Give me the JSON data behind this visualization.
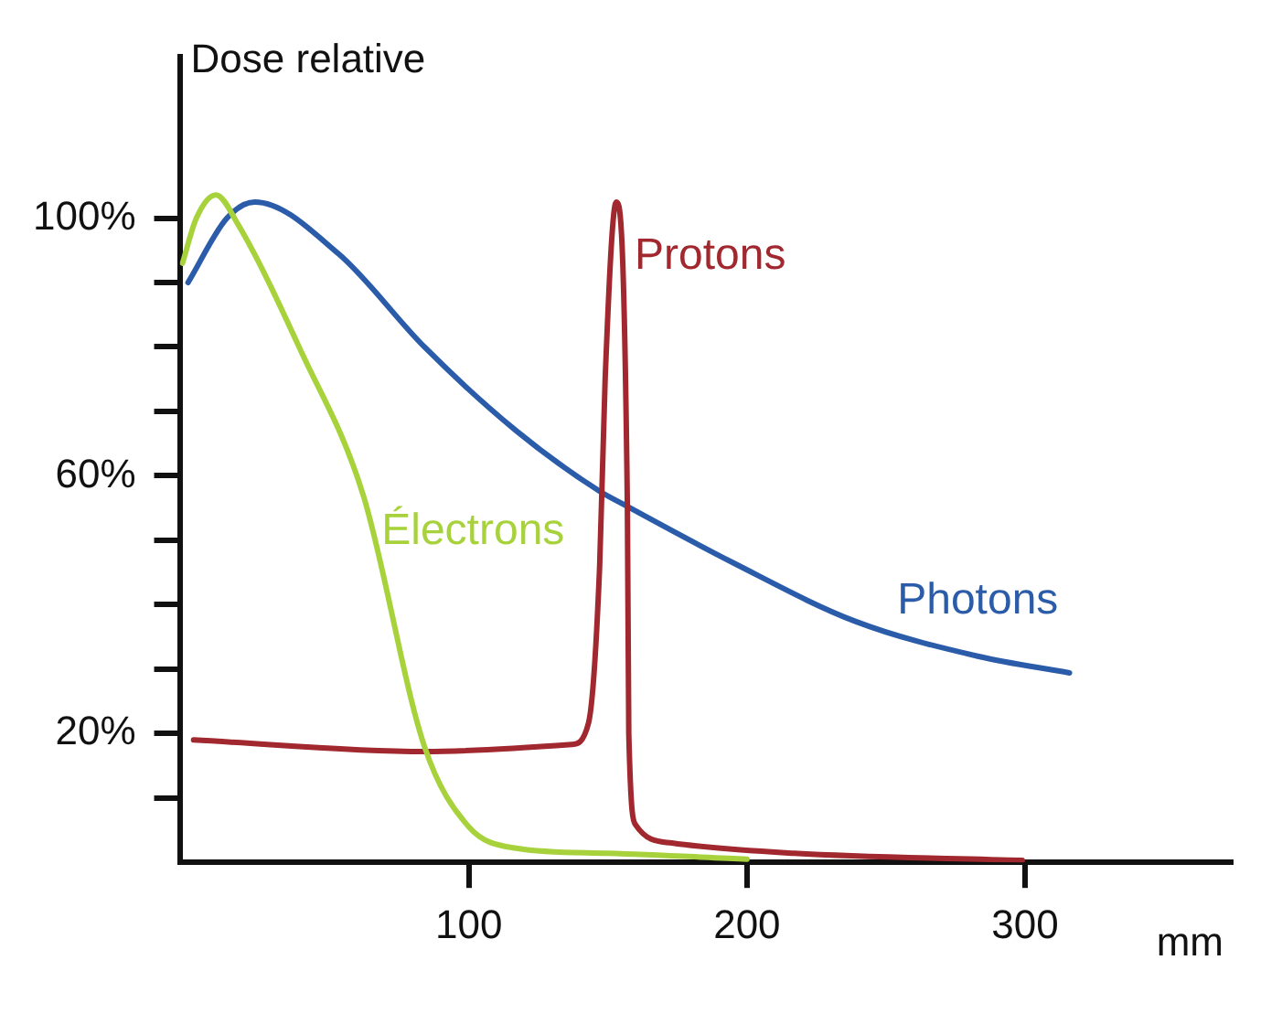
{
  "chart_data": {
    "type": "line",
    "xlabel": "mm",
    "ylabel": "Dose relative",
    "xlim": [
      -4,
      374
    ],
    "ylim": [
      0,
      125
    ],
    "xticks": [
      100,
      200,
      300
    ],
    "yticks": [
      {
        "value": 10,
        "label": null
      },
      {
        "value": 20,
        "label": "20%"
      },
      {
        "value": 30,
        "label": null
      },
      {
        "value": 40,
        "label": null
      },
      {
        "value": 50,
        "label": null
      },
      {
        "value": 60,
        "label": "60%"
      },
      {
        "value": 70,
        "label": null
      },
      {
        "value": 80,
        "label": null
      },
      {
        "value": 90,
        "label": null
      },
      {
        "value": 100,
        "label": "100%"
      }
    ],
    "grid": false,
    "legend": false,
    "marker": "none",
    "line_style": "solid",
    "series": [
      {
        "name": "Électrons",
        "color": "#a8d23c",
        "x": [
          -3,
          2,
          9,
          17,
          40,
          62,
          84,
          100,
          117,
          150,
          200
        ],
        "values": [
          93,
          100,
          103.6,
          99,
          79,
          57,
          18,
          5.5,
          2.2,
          1.4,
          0.5
        ]
      },
      {
        "name": "Protons",
        "color": "#a0282e",
        "x": [
          1,
          84,
          137,
          143,
          147,
          149,
          153,
          157,
          157.5,
          160,
          173,
          217,
          299
        ],
        "values": [
          19,
          17.2,
          18.3,
          21.6,
          45.7,
          75,
          102.5,
          55,
          20,
          5.8,
          3,
          1.4,
          0.3
        ]
      },
      {
        "name": "Photons",
        "color": "#2a5caa",
        "x": [
          -1,
          13,
          23,
          53,
          84,
          117,
          147,
          155,
          195,
          239,
          283,
          316
        ],
        "values": [
          90,
          100,
          102.5,
          94.5,
          80,
          67,
          57.6,
          55.7,
          46.5,
          37.4,
          32,
          29.4
        ]
      }
    ]
  }
}
